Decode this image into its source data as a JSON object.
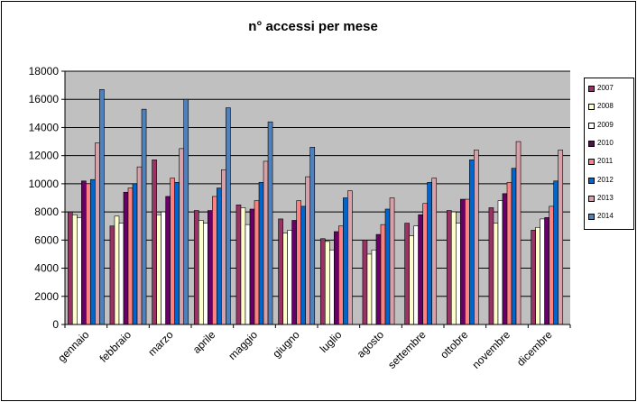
{
  "chart_data": {
    "type": "bar",
    "title": "n° accessi per mese",
    "xlabel": "",
    "ylabel": "",
    "ylim": [
      0,
      18000
    ],
    "yticks": [
      "0",
      "2000",
      "4000",
      "6000",
      "8000",
      "10000",
      "12000",
      "14000",
      "16000",
      "18000"
    ],
    "grid": true,
    "legend_position": "right",
    "plot_background": "#C0C0C0",
    "categories": [
      "gennaio",
      "febbraio",
      "marzo",
      "aprile",
      "maggio",
      "giugno",
      "luglio",
      "agosto",
      "settembre",
      "ottobre",
      "novembre",
      "dicembre"
    ],
    "series": [
      {
        "name": "2007",
        "color": "#993366",
        "values": [
          8000,
          7000,
          11700,
          8100,
          8500,
          7500,
          6100,
          6000,
          7200,
          8100,
          8300,
          6700
        ]
      },
      {
        "name": "2008",
        "color": "#FFFFCC",
        "values": [
          7800,
          7700,
          7800,
          7400,
          8300,
          6500,
          5900,
          5000,
          6300,
          8000,
          7200,
          6900
        ]
      },
      {
        "name": "2009",
        "color": "#FFFFFF",
        "values": [
          7600,
          7200,
          8000,
          7200,
          7100,
          6700,
          5300,
          5300,
          7000,
          7200,
          8800,
          7500
        ]
      },
      {
        "name": "2010",
        "color": "#660066",
        "values": [
          10200,
          9400,
          9100,
          8100,
          8200,
          7400,
          6600,
          6400,
          7800,
          8900,
          9300,
          7600
        ]
      },
      {
        "name": "2011",
        "color": "#FF8080",
        "values": [
          10000,
          9700,
          10400,
          9100,
          8800,
          8800,
          7000,
          7100,
          8600,
          8900,
          10100,
          8400
        ]
      },
      {
        "name": "2012",
        "color": "#0066CC",
        "values": [
          10300,
          10000,
          10100,
          9700,
          10100,
          8400,
          9000,
          8200,
          10100,
          11700,
          11100,
          10200
        ]
      },
      {
        "name": "2013",
        "color": "#D8A0A8",
        "values": [
          12900,
          11200,
          12500,
          11000,
          11600,
          10500,
          9500,
          9000,
          10400,
          12400,
          13000,
          12400
        ]
      },
      {
        "name": "2014",
        "color": "#4F81BD",
        "values": [
          16700,
          15300,
          16000,
          15400,
          14400,
          12600,
          null,
          null,
          null,
          null,
          null,
          null
        ]
      }
    ]
  }
}
